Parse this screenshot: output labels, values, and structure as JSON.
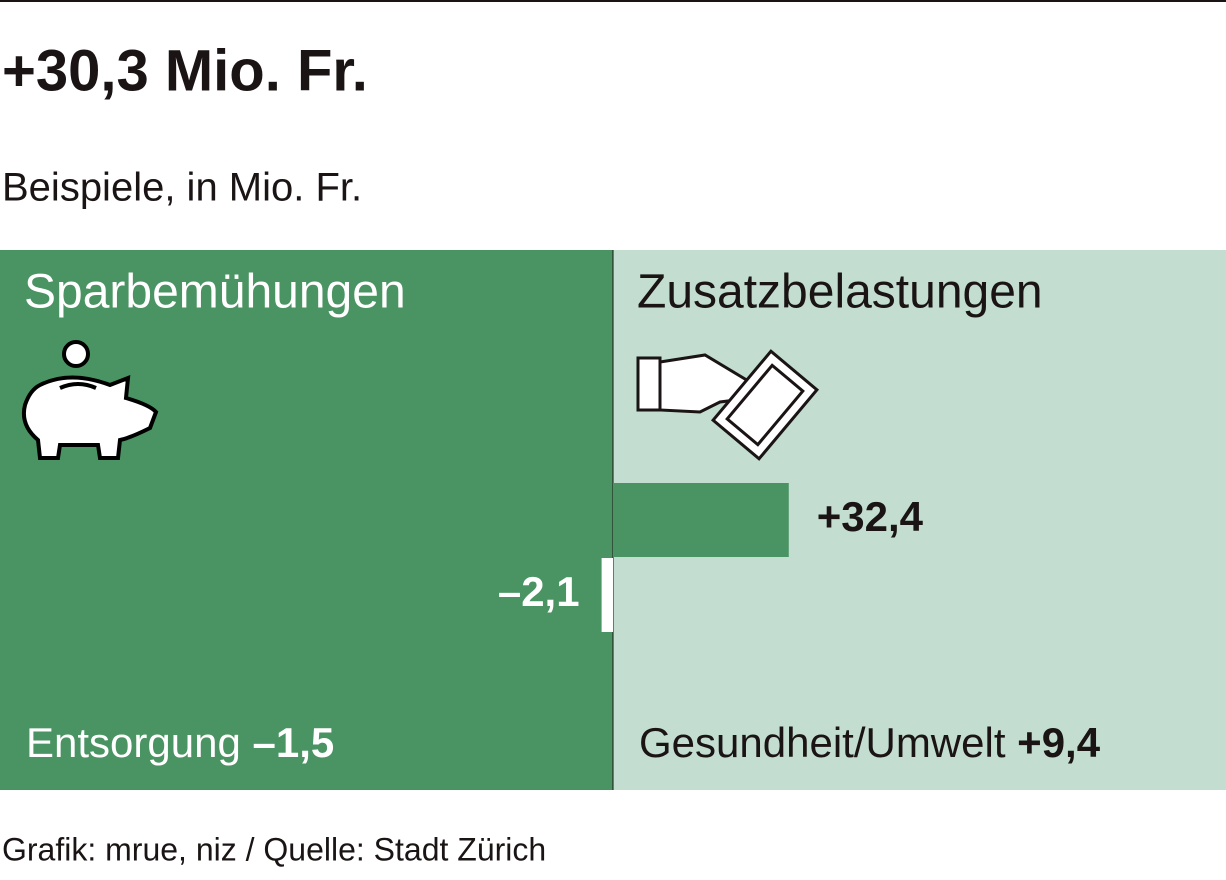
{
  "chart_data": {
    "type": "bar",
    "orientation": "horizontal",
    "title": "+30,3 Mio. Fr.",
    "subtitle": "Beispiele, in Mio. Fr.",
    "source": "Grafik: mrue, niz / Quelle: Stadt Zürich",
    "categories": [
      null,
      null
    ],
    "values": [
      32.4,
      -2.1
    ],
    "value_labels": [
      "+32,4",
      "–2,1"
    ],
    "colors": [
      "#4a9362",
      "#ffffff"
    ],
    "xlim": [
      -113,
      113
    ],
    "panels": [
      {
        "label": "Sparbemühungen",
        "note": "Entsorgung",
        "note_value": "–1,5",
        "color": "#4a9362",
        "text_color": "#ffffff"
      },
      {
        "label": "Zusatzbelastungen",
        "note": "Gesundheit/Umwelt",
        "note_value": "+9,4",
        "color": "#c3ddd0",
        "text_color": "#1a1414"
      }
    ]
  }
}
